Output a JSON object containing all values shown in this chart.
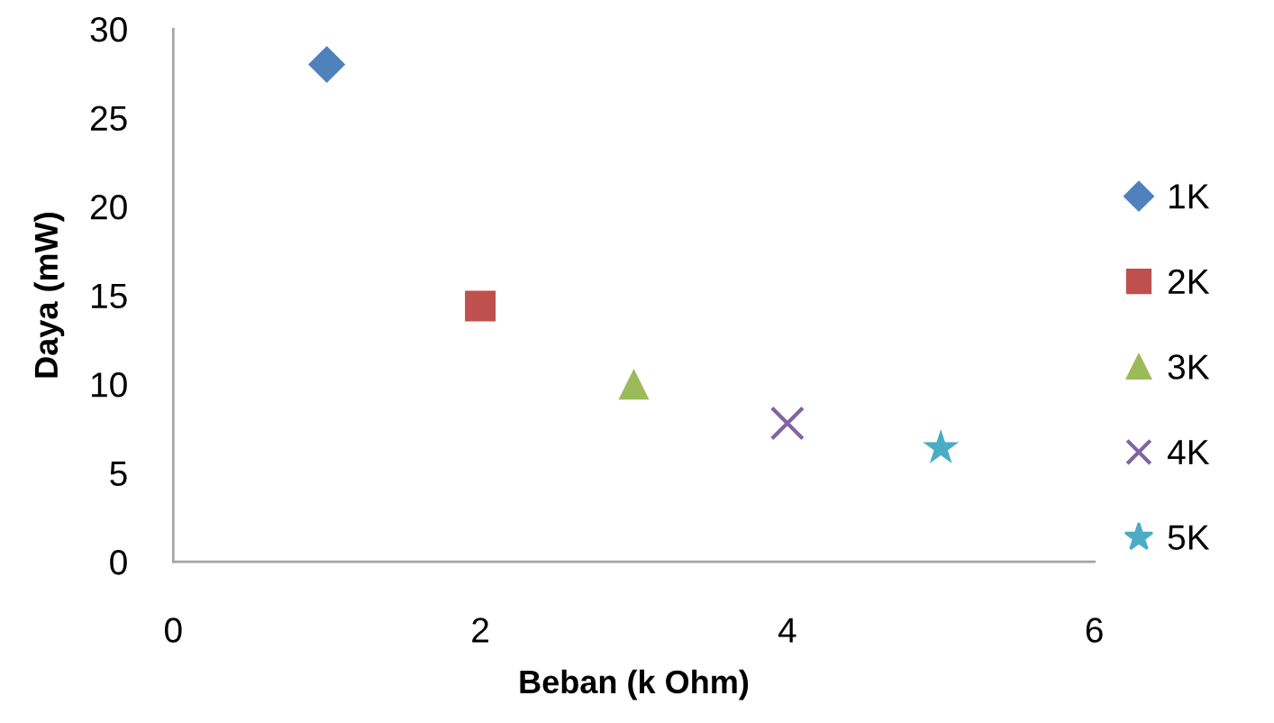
{
  "chart_data": {
    "type": "scatter",
    "xlabel": "Beban (k Ohm)",
    "ylabel": "Daya (mW)",
    "xlim": [
      0,
      6
    ],
    "xticks": [
      0,
      2,
      4,
      6
    ],
    "ylim": [
      0,
      30
    ],
    "yticks": [
      0,
      5,
      10,
      15,
      20,
      25,
      30
    ],
    "grid": false,
    "legend": "right",
    "series": [
      {
        "name": "1K",
        "color": "#4f81bd",
        "marker": "diamond",
        "x": [
          1
        ],
        "values": [
          28
        ]
      },
      {
        "name": "2K",
        "color": "#c0504d",
        "marker": "square",
        "x": [
          2
        ],
        "values": [
          14.4
        ]
      },
      {
        "name": "3K",
        "color": "#9bbb59",
        "marker": "triangle",
        "x": [
          3
        ],
        "values": [
          10
        ]
      },
      {
        "name": "4K",
        "color": "#8064a2",
        "marker": "cross",
        "x": [
          4
        ],
        "values": [
          7.8
        ]
      },
      {
        "name": "5K",
        "color": "#4bacc6",
        "marker": "star",
        "x": [
          5
        ],
        "values": [
          6.4
        ]
      }
    ]
  }
}
